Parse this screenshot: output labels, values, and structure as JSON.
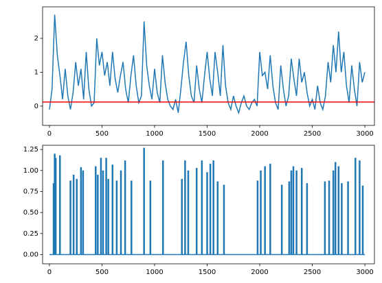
{
  "chart_data": [
    {
      "type": "line",
      "xlim": [
        -65,
        3091
      ],
      "ylim": [
        -0.57,
        2.93
      ],
      "xticks": [
        0,
        500,
        1000,
        1500,
        2000,
        2500,
        3000
      ],
      "yticks": [
        0,
        1,
        2
      ],
      "hline": {
        "value": 0.12,
        "color": "red"
      },
      "series": [
        {
          "color": "#1f77b4",
          "x": [
            0,
            25,
            50,
            75,
            100,
            125,
            150,
            175,
            200,
            225,
            250,
            275,
            300,
            325,
            350,
            375,
            400,
            425,
            450,
            475,
            500,
            525,
            550,
            575,
            600,
            625,
            650,
            675,
            700,
            725,
            750,
            775,
            800,
            825,
            850,
            875,
            900,
            925,
            950,
            975,
            1000,
            1025,
            1050,
            1075,
            1100,
            1125,
            1150,
            1175,
            1200,
            1225,
            1250,
            1275,
            1300,
            1325,
            1350,
            1375,
            1400,
            1425,
            1450,
            1475,
            1500,
            1525,
            1550,
            1575,
            1600,
            1625,
            1650,
            1675,
            1700,
            1725,
            1750,
            1775,
            1800,
            1825,
            1850,
            1875,
            1900,
            1925,
            1950,
            1975,
            2000,
            2025,
            2050,
            2075,
            2100,
            2125,
            2150,
            2175,
            2200,
            2225,
            2250,
            2275,
            2300,
            2325,
            2350,
            2375,
            2400,
            2425,
            2450,
            2475,
            2500,
            2525,
            2550,
            2575,
            2600,
            2625,
            2650,
            2675,
            2700,
            2725,
            2750,
            2775,
            2800,
            2825,
            2850,
            2875,
            2900,
            2925,
            2950,
            2975,
            3000
          ],
          "values": [
            -0.1,
            0.5,
            2.7,
            1.5,
            0.9,
            0.2,
            1.1,
            0.3,
            -0.1,
            0.4,
            1.3,
            0.6,
            1.1,
            0.2,
            1.6,
            0.5,
            0.0,
            0.1,
            2.0,
            1.2,
            1.6,
            0.9,
            1.3,
            0.6,
            1.6,
            0.8,
            0.4,
            0.9,
            1.3,
            0.5,
            0.1,
            0.9,
            1.5,
            0.6,
            0.1,
            0.3,
            2.5,
            1.2,
            0.6,
            0.2,
            1.1,
            0.4,
            0.1,
            1.5,
            0.7,
            0.2,
            0.0,
            -0.1,
            0.2,
            -0.2,
            0.5,
            1.3,
            1.9,
            0.9,
            0.3,
            0.1,
            1.2,
            0.5,
            0.1,
            0.9,
            1.6,
            0.8,
            0.3,
            1.6,
            1.0,
            0.3,
            1.8,
            0.6,
            0.1,
            -0.1,
            0.3,
            0.0,
            -0.2,
            0.1,
            0.3,
            0.0,
            -0.1,
            0.1,
            0.2,
            0.0,
            1.6,
            0.9,
            1.0,
            0.5,
            1.5,
            0.6,
            0.1,
            -0.1,
            1.2,
            0.5,
            0.0,
            0.3,
            1.4,
            0.8,
            0.3,
            1.4,
            0.7,
            1.0,
            0.4,
            0.0,
            0.2,
            -0.1,
            0.6,
            0.1,
            -0.1,
            0.3,
            1.3,
            0.7,
            1.8,
            1.0,
            2.2,
            1.0,
            1.6,
            0.6,
            0.1,
            1.2,
            0.5,
            0.0,
            1.3,
            0.7,
            1.0
          ]
        }
      ]
    },
    {
      "type": "stem",
      "xlim": [
        -65,
        3091
      ],
      "ylim": [
        -0.11,
        1.3
      ],
      "xticks": [
        0,
        500,
        1000,
        1500,
        2000,
        2500,
        3000
      ],
      "yticks": [
        {
          "value": 0,
          "label": "0.00"
        },
        {
          "value": 0.25,
          "label": "0.25"
        },
        {
          "value": 0.5,
          "label": "0.50"
        },
        {
          "value": 0.75,
          "label": "0.75"
        },
        {
          "value": 1,
          "label": "1.00"
        },
        {
          "value": 1.25,
          "label": "1.25"
        }
      ],
      "series": [
        {
          "color": "#1f77b4",
          "baseline": 0,
          "xrange": [
            0,
            3000
          ],
          "x": [
            40,
            50,
            60,
            100,
            200,
            230,
            260,
            300,
            320,
            440,
            460,
            490,
            510,
            540,
            560,
            600,
            640,
            680,
            720,
            780,
            900,
            960,
            1080,
            1260,
            1290,
            1320,
            1400,
            1450,
            1500,
            1530,
            1560,
            1600,
            1660,
            1980,
            2010,
            2050,
            2100,
            2210,
            2280,
            2300,
            2320,
            2350,
            2400,
            2450,
            2620,
            2660,
            2700,
            2720,
            2750,
            2780,
            2840,
            2910,
            2950,
            2980
          ],
          "values": [
            0.85,
            1.2,
            1.15,
            1.18,
            0.88,
            0.95,
            0.9,
            1.04,
            1.0,
            1.05,
            0.95,
            1.15,
            1.0,
            1.15,
            0.9,
            1.07,
            0.88,
            1.0,
            1.12,
            0.88,
            1.27,
            0.88,
            1.12,
            0.9,
            1.12,
            1.0,
            1.03,
            1.12,
            0.98,
            1.08,
            1.12,
            0.87,
            0.83,
            0.88,
            1.0,
            1.05,
            1.08,
            0.83,
            0.87,
            1.0,
            1.05,
            1.0,
            1.03,
            0.85,
            0.87,
            0.88,
            1.0,
            1.1,
            1.05,
            0.85,
            0.87,
            1.15,
            1.12,
            0.82
          ]
        }
      ]
    }
  ]
}
